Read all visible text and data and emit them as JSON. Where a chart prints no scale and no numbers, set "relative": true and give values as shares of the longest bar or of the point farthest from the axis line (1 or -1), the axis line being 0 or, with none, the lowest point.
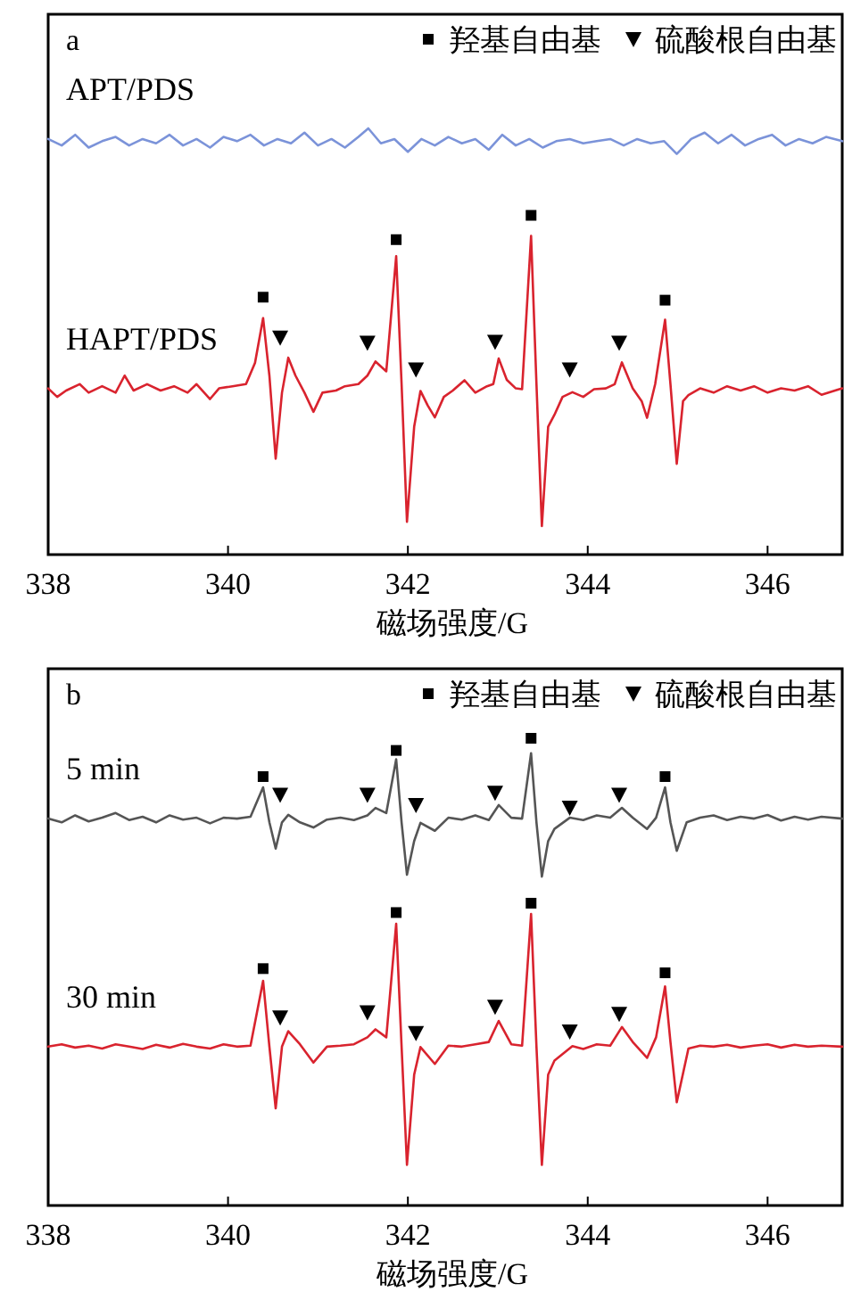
{
  "chart_data": [
    {
      "type": "line",
      "title": "a",
      "xlabel": "磁场强度/G",
      "xlim": [
        338,
        346.83
      ],
      "xticks": [
        338,
        340,
        342,
        344,
        346
      ],
      "relative": true,
      "legend": "top right",
      "series": [
        {
          "name": "APT/PDS",
          "color": "#7b93d9",
          "x": [
            338.0,
            338.15,
            338.3,
            338.45,
            338.6,
            338.75,
            338.9,
            339.05,
            339.2,
            339.35,
            339.5,
            339.65,
            339.8,
            339.95,
            340.1,
            340.25,
            340.4,
            340.55,
            340.7,
            340.85,
            341.0,
            341.15,
            341.3,
            341.45,
            341.56,
            341.7,
            341.85,
            342.0,
            342.15,
            342.3,
            342.45,
            342.6,
            342.75,
            342.9,
            343.05,
            343.2,
            343.35,
            343.5,
            343.65,
            343.8,
            343.95,
            344.1,
            344.25,
            344.4,
            344.55,
            344.7,
            344.85,
            344.99,
            345.15,
            345.3,
            345.45,
            345.6,
            345.75,
            345.9,
            346.05,
            346.2,
            346.35,
            346.5,
            346.65,
            346.83
          ],
          "values": [
            0.975,
            0.96,
            0.985,
            0.955,
            0.97,
            0.98,
            0.96,
            0.975,
            0.965,
            0.985,
            0.96,
            0.975,
            0.955,
            0.98,
            0.97,
            0.985,
            0.96,
            0.975,
            0.965,
            0.99,
            0.96,
            0.975,
            0.955,
            0.98,
            1.0,
            0.965,
            0.975,
            0.945,
            0.975,
            0.96,
            0.98,
            0.965,
            0.975,
            0.95,
            0.985,
            0.96,
            0.975,
            0.955,
            0.97,
            0.975,
            0.965,
            0.97,
            0.975,
            0.96,
            0.975,
            0.965,
            0.97,
            0.94,
            0.975,
            0.99,
            0.965,
            0.985,
            0.96,
            0.975,
            0.985,
            0.96,
            0.975,
            0.965,
            0.98,
            0.97
          ]
        },
        {
          "name": "HAPT/PDS",
          "color": "#d9232e",
          "x": [
            338.0,
            338.1,
            338.2,
            338.35,
            338.45,
            338.6,
            338.75,
            338.85,
            338.95,
            339.1,
            339.25,
            339.4,
            339.55,
            339.65,
            339.8,
            339.9,
            340.05,
            340.2,
            340.3,
            340.39,
            340.46,
            340.53,
            340.6,
            340.67,
            340.75,
            340.85,
            340.95,
            341.05,
            341.2,
            341.3,
            341.45,
            341.55,
            341.64,
            341.76,
            341.87,
            341.93,
            341.99,
            342.07,
            342.14,
            342.22,
            342.3,
            342.4,
            342.5,
            342.63,
            342.75,
            342.88,
            342.95,
            343.01,
            343.1,
            343.2,
            343.27,
            343.37,
            343.43,
            343.49,
            343.56,
            343.63,
            343.72,
            343.83,
            343.95,
            344.07,
            344.2,
            344.3,
            344.38,
            344.5,
            344.6,
            344.66,
            344.75,
            344.86,
            344.92,
            344.99,
            345.06,
            345.12,
            345.25,
            345.4,
            345.55,
            345.7,
            345.85,
            346.0,
            346.15,
            346.3,
            346.45,
            346.6,
            346.75,
            346.83
          ],
          "values": [
            0.39,
            0.37,
            0.385,
            0.4,
            0.38,
            0.395,
            0.38,
            0.42,
            0.385,
            0.4,
            0.385,
            0.395,
            0.38,
            0.4,
            0.365,
            0.39,
            0.395,
            0.4,
            0.45,
            0.555,
            0.42,
            0.225,
            0.38,
            0.462,
            0.42,
            0.38,
            0.335,
            0.38,
            0.385,
            0.395,
            0.4,
            0.42,
            0.453,
            0.43,
            0.7,
            0.4,
            0.077,
            0.3,
            0.384,
            0.35,
            0.322,
            0.37,
            0.385,
            0.409,
            0.38,
            0.395,
            0.4,
            0.46,
            0.41,
            0.39,
            0.388,
            0.748,
            0.4,
            0.067,
            0.3,
            0.328,
            0.37,
            0.381,
            0.37,
            0.388,
            0.39,
            0.4,
            0.451,
            0.39,
            0.36,
            0.321,
            0.4,
            0.551,
            0.4,
            0.213,
            0.36,
            0.374,
            0.39,
            0.38,
            0.395,
            0.385,
            0.395,
            0.38,
            0.39,
            0.385,
            0.395,
            0.375,
            0.385,
            0.39
          ]
        },
        {
          "name": "羟基自由基",
          "type": "scatter",
          "marker": "square",
          "color": "#000000",
          "x": [
            340.39,
            341.87,
            343.37,
            344.86
          ],
          "values": [
            0.604,
            0.739,
            0.796,
            0.597
          ]
        },
        {
          "name": "硫酸根自由基",
          "type": "scatter",
          "marker": "triangle",
          "color": "#000000",
          "x": [
            340.58,
            341.55,
            342.09,
            342.97,
            343.8,
            344.35
          ],
          "values": [
            0.509,
            0.497,
            0.434,
            0.499,
            0.434,
            0.497
          ]
        }
      ]
    },
    {
      "type": "line",
      "title": "b",
      "xlabel": "磁场强度/G",
      "xlim": [
        338,
        346.83
      ],
      "xticks": [
        338,
        340,
        342,
        344,
        346
      ],
      "relative": true,
      "legend": "top right",
      "series": [
        {
          "name": "5 min",
          "color": "#555555",
          "x": [
            338.0,
            338.15,
            338.3,
            338.45,
            338.6,
            338.75,
            338.9,
            339.05,
            339.2,
            339.35,
            339.5,
            339.65,
            339.8,
            339.95,
            340.1,
            340.25,
            340.39,
            340.46,
            340.53,
            340.6,
            340.67,
            340.8,
            340.95,
            341.1,
            341.25,
            341.4,
            341.55,
            341.64,
            341.76,
            341.87,
            341.93,
            341.99,
            342.07,
            342.14,
            342.3,
            342.45,
            342.6,
            342.75,
            342.9,
            343.01,
            343.15,
            343.27,
            343.37,
            343.43,
            343.49,
            343.56,
            343.63,
            343.8,
            343.95,
            344.1,
            344.25,
            344.38,
            344.5,
            344.66,
            344.76,
            344.86,
            344.92,
            344.99,
            345.1,
            345.25,
            345.4,
            345.55,
            345.7,
            345.85,
            346.0,
            346.15,
            346.3,
            346.45,
            346.6,
            346.83
          ],
          "values": [
            0.828,
            0.82,
            0.835,
            0.822,
            0.83,
            0.84,
            0.825,
            0.832,
            0.82,
            0.835,
            0.826,
            0.83,
            0.818,
            0.83,
            0.828,
            0.832,
            0.895,
            0.82,
            0.764,
            0.82,
            0.836,
            0.82,
            0.809,
            0.826,
            0.83,
            0.825,
            0.835,
            0.851,
            0.84,
            0.955,
            0.82,
            0.708,
            0.78,
            0.819,
            0.802,
            0.83,
            0.826,
            0.835,
            0.825,
            0.857,
            0.83,
            0.828,
            0.968,
            0.82,
            0.704,
            0.78,
            0.806,
            0.83,
            0.825,
            0.835,
            0.83,
            0.851,
            0.83,
            0.806,
            0.83,
            0.895,
            0.82,
            0.759,
            0.82,
            0.83,
            0.835,
            0.825,
            0.832,
            0.828,
            0.836,
            0.824,
            0.832,
            0.826,
            0.832,
            0.828
          ]
        },
        {
          "name": "30 min",
          "color": "#d9232e",
          "x": [
            338.0,
            338.15,
            338.3,
            338.45,
            338.6,
            338.75,
            338.9,
            339.05,
            339.2,
            339.35,
            339.5,
            339.65,
            339.8,
            339.95,
            340.1,
            340.25,
            340.39,
            340.46,
            340.53,
            340.6,
            340.67,
            340.8,
            340.95,
            341.1,
            341.25,
            341.4,
            341.55,
            341.64,
            341.76,
            341.87,
            341.93,
            341.99,
            342.07,
            342.14,
            342.3,
            342.45,
            342.6,
            342.75,
            342.9,
            343.01,
            343.15,
            343.27,
            343.37,
            343.43,
            343.49,
            343.56,
            343.63,
            343.83,
            343.95,
            344.1,
            344.25,
            344.38,
            344.5,
            344.66,
            344.76,
            344.86,
            344.92,
            344.99,
            345.12,
            345.25,
            345.4,
            345.55,
            345.7,
            345.85,
            346.0,
            346.15,
            346.3,
            346.45,
            346.6,
            346.83
          ],
          "values": [
            0.34,
            0.345,
            0.338,
            0.342,
            0.336,
            0.345,
            0.34,
            0.335,
            0.344,
            0.338,
            0.346,
            0.34,
            0.336,
            0.345,
            0.34,
            0.342,
            0.481,
            0.34,
            0.208,
            0.34,
            0.373,
            0.345,
            0.306,
            0.34,
            0.342,
            0.345,
            0.36,
            0.377,
            0.36,
            0.603,
            0.34,
            0.087,
            0.28,
            0.339,
            0.303,
            0.342,
            0.34,
            0.345,
            0.35,
            0.395,
            0.345,
            0.342,
            0.624,
            0.34,
            0.087,
            0.28,
            0.31,
            0.341,
            0.335,
            0.345,
            0.342,
            0.382,
            0.35,
            0.316,
            0.36,
            0.469,
            0.35,
            0.221,
            0.336,
            0.342,
            0.34,
            0.344,
            0.338,
            0.342,
            0.345,
            0.338,
            0.344,
            0.34,
            0.342,
            0.34
          ]
        },
        {
          "name": "羟基自由基",
          "type": "scatter",
          "marker": "square",
          "color": "#000000",
          "x": [
            340.39,
            341.87,
            343.37,
            344.86,
            340.39,
            341.87,
            343.37,
            344.86
          ],
          "values": [
            0.918,
            0.974,
            1.0,
            0.918,
            0.507,
            0.627,
            0.647,
            0.498
          ]
        },
        {
          "name": "硫酸根自由基",
          "type": "scatter",
          "marker": "triangle",
          "color": "#000000",
          "x": [
            340.58,
            341.55,
            342.09,
            342.97,
            343.8,
            344.35,
            340.58,
            341.55,
            342.09,
            342.97,
            343.8,
            344.35
          ],
          "values": [
            0.879,
            0.879,
            0.857,
            0.883,
            0.851,
            0.879,
            0.402,
            0.413,
            0.369,
            0.425,
            0.372,
            0.41
          ]
        }
      ]
    }
  ]
}
